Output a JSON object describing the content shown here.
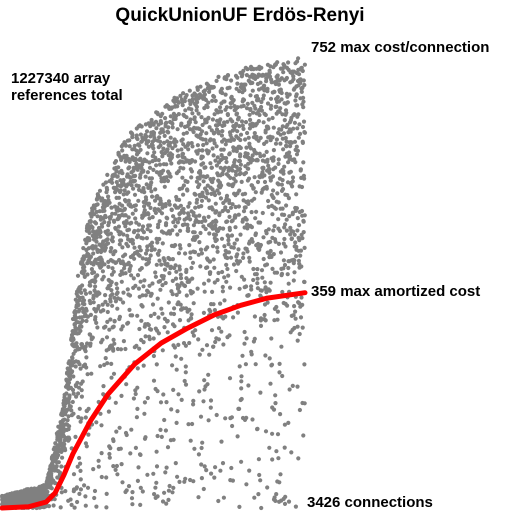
{
  "chart_data": {
    "type": "scatter",
    "title": "QuickUnionUF Erdös-Renyi",
    "xlabel": "",
    "ylabel": "",
    "grid": false,
    "legend": "none",
    "xlim": [
      0,
      3426
    ],
    "ylim": [
      0,
      752
    ],
    "annotations": {
      "total_refs_line1": "1227340 array",
      "total_refs_line2": "references total",
      "max_cost": "752 max cost/connection",
      "max_amortized": "359 max amortized cost",
      "connections": "3426 connections"
    },
    "colors": {
      "points": "#808080",
      "amortized_curve": "#ff0000"
    },
    "series": [
      {
        "kind": "points",
        "note_values": "cost per connection, sampled",
        "envelope": [
          {
            "x": 0,
            "y": 20
          },
          {
            "x": 500,
            "y": 40
          },
          {
            "x": 700,
            "y": 180
          },
          {
            "x": 850,
            "y": 380
          },
          {
            "x": 1000,
            "y": 500
          },
          {
            "x": 1400,
            "y": 620
          },
          {
            "x": 2000,
            "y": 690
          },
          {
            "x": 2600,
            "y": 730
          },
          {
            "x": 3426,
            "y": 752
          }
        ]
      },
      {
        "kind": "curve",
        "points": [
          {
            "x": 0,
            "y": 0
          },
          {
            "x": 300,
            "y": 2
          },
          {
            "x": 500,
            "y": 10
          },
          {
            "x": 600,
            "y": 25
          },
          {
            "x": 700,
            "y": 55
          },
          {
            "x": 800,
            "y": 90
          },
          {
            "x": 1000,
            "y": 145
          },
          {
            "x": 1200,
            "y": 190
          },
          {
            "x": 1500,
            "y": 240
          },
          {
            "x": 1800,
            "y": 275
          },
          {
            "x": 2100,
            "y": 300
          },
          {
            "x": 2400,
            "y": 322
          },
          {
            "x": 2700,
            "y": 338
          },
          {
            "x": 3000,
            "y": 350
          },
          {
            "x": 3426,
            "y": 359
          }
        ]
      }
    ]
  }
}
